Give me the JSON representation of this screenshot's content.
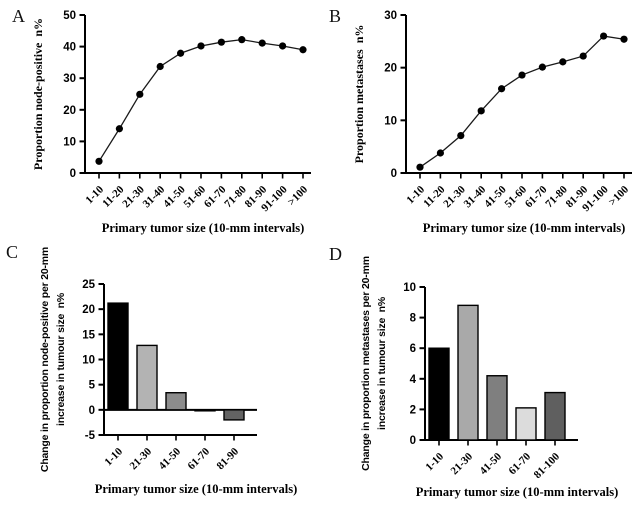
{
  "figure": {
    "background": "#ffffff",
    "text_color": "#000000",
    "panels": [
      {
        "letter": "A"
      },
      {
        "letter": "B"
      },
      {
        "letter": "C"
      },
      {
        "letter": "D"
      }
    ]
  },
  "chart_data": [
    {
      "id": "A",
      "type": "line",
      "title": "",
      "ylabel": "Proportion node-positive  n%",
      "xlabel": "Primary tumor size (10-mm intervals)",
      "categories": [
        "1-10",
        "11-20",
        "21-30",
        "31-40",
        "41-50",
        "51-60",
        "61-70",
        "71-80",
        "81-90",
        "91-100",
        ">100"
      ],
      "values": [
        3.7,
        14.0,
        24.9,
        33.7,
        37.9,
        40.2,
        41.4,
        42.2,
        41.1,
        40.2,
        39.0
      ],
      "ylim": [
        0,
        50
      ],
      "yticks": [
        0,
        10,
        20,
        30,
        40,
        50
      ],
      "grid": false,
      "legend": "none",
      "marker": "filled-circle",
      "color": "#000000"
    },
    {
      "id": "B",
      "type": "line",
      "title": "",
      "ylabel": "Proportion metastases  n%",
      "xlabel": "Primary tumor size (10-mm intervals)",
      "categories": [
        "1-10",
        "11-20",
        "21-30",
        "31-40",
        "41-50",
        "51-60",
        "61-70",
        "71-80",
        "81-90",
        "91-100",
        ">100"
      ],
      "values": [
        1.1,
        3.8,
        7.1,
        11.8,
        16.0,
        18.6,
        20.1,
        21.1,
        22.2,
        26.0,
        25.4
      ],
      "ylim": [
        0,
        30
      ],
      "yticks": [
        0,
        10,
        20,
        30
      ],
      "grid": false,
      "legend": "none",
      "marker": "filled-circle",
      "color": "#000000"
    },
    {
      "id": "C",
      "type": "bar",
      "title": "",
      "ylabel_lines": [
        "Change in proportion node-positive per 20-mm",
        "increase in tumour size  n%"
      ],
      "xlabel": "Primary tumor size (10-mm intervals)",
      "categories": [
        "1-10",
        "21-30",
        "41-50",
        "61-70",
        "81-90"
      ],
      "values": [
        21.2,
        12.8,
        3.4,
        -0.2,
        -2.0
      ],
      "bar_colors": [
        "#000000",
        "#b3b3b3",
        "#8c8c8c",
        "#1a1a1a",
        "#636363"
      ],
      "ylim": [
        -5,
        25
      ],
      "yticks": [
        -5,
        0,
        5,
        10,
        15,
        20,
        25
      ],
      "grid": false,
      "legend": "none"
    },
    {
      "id": "D",
      "type": "bar",
      "title": "",
      "ylabel_lines": [
        "Change in proportion metastases per 20-mm",
        "increase in tumour size  n%"
      ],
      "xlabel": "Primary tumor size (10-mm intervals)",
      "categories": [
        "1-10",
        "21-30",
        "41-50",
        "61-70",
        "81-100"
      ],
      "values": [
        6.0,
        8.8,
        4.2,
        2.1,
        3.1
      ],
      "bar_colors": [
        "#000000",
        "#a9a9a9",
        "#7f7f7f",
        "#dcdcdc",
        "#5f5f5f"
      ],
      "ylim": [
        0,
        10
      ],
      "yticks": [
        0,
        2,
        4,
        6,
        8,
        10
      ],
      "grid": false,
      "legend": "none"
    }
  ]
}
